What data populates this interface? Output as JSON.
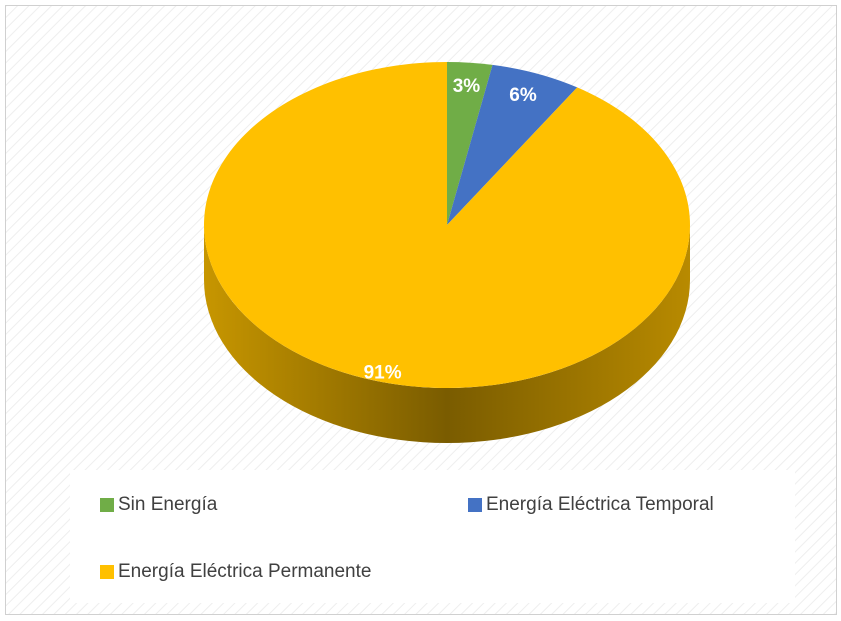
{
  "chart_data": {
    "type": "pie",
    "categories": [
      "Sin Energía",
      "Energía Eléctrica Temporal",
      "Energía Eléctrica Permanente"
    ],
    "values": [
      3,
      6,
      91
    ],
    "value_labels": [
      "3%",
      "6%",
      "91%"
    ],
    "colors": [
      "#70ad47",
      "#4472c4",
      "#ffc000"
    ]
  }
}
